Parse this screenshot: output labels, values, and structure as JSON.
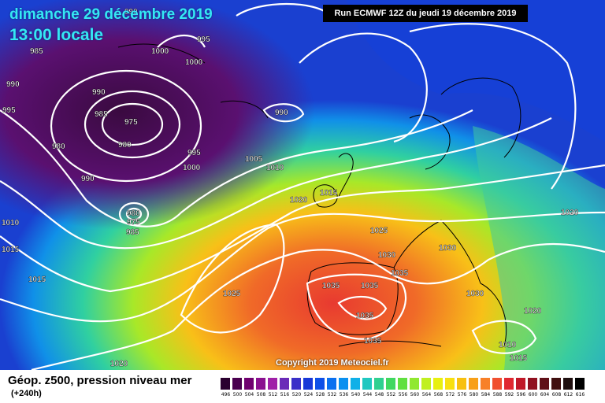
{
  "header": {
    "date": "dimanche 29 décembre 2019",
    "time": "13:00 locale",
    "run": "Run ECMWF 12Z du jeudi 19 décembre 2019"
  },
  "copyright": "Copyright 2019 Meteociel.fr",
  "legend": {
    "title": "Géop. z500, pression niveau mer",
    "forecast_hour": "(+240h)",
    "scale_values": [
      "496",
      "500",
      "504",
      "508",
      "512",
      "516",
      "520",
      "524",
      "528",
      "532",
      "536",
      "540",
      "544",
      "548",
      "552",
      "556",
      "560",
      "564",
      "568",
      "572",
      "576",
      "580",
      "584",
      "588",
      "592",
      "596",
      "600",
      "604",
      "608",
      "612",
      "616"
    ],
    "scale_colors": [
      "#2a0030",
      "#4a0050",
      "#700070",
      "#8a1090",
      "#a020a8",
      "#6a2ab8",
      "#3a30c8",
      "#1838d8",
      "#0e50e8",
      "#0a70f0",
      "#0a90f0",
      "#10b0e8",
      "#20c8c0",
      "#30d090",
      "#40d860",
      "#60e040",
      "#90e830",
      "#c0f020",
      "#e8f010",
      "#f8e010",
      "#f8c010",
      "#f8a018",
      "#f88028",
      "#f05030",
      "#e02830",
      "#c01828",
      "#901020",
      "#601018",
      "#401010",
      "#201010",
      "#000000"
    ]
  },
  "map": {
    "background_colors": {
      "low": "#3a0a40",
      "mid": "#1a30c0",
      "high": "#e83a30"
    },
    "isobar_labels": [
      "985",
      "990",
      "995",
      "990",
      "1000",
      "1000",
      "995",
      "990",
      "985",
      "975",
      "980",
      "980",
      "990",
      "995",
      "1000",
      "1005",
      "1010",
      "990",
      "1015",
      "1020",
      "1025",
      "980",
      "975",
      "985",
      "1010",
      "1015",
      "1015",
      "1025",
      "1030",
      "1030",
      "1035",
      "1035",
      "1035",
      "1035",
      "1035",
      "1030",
      "1020",
      "1010",
      "1015",
      "1020",
      "1020"
    ]
  }
}
